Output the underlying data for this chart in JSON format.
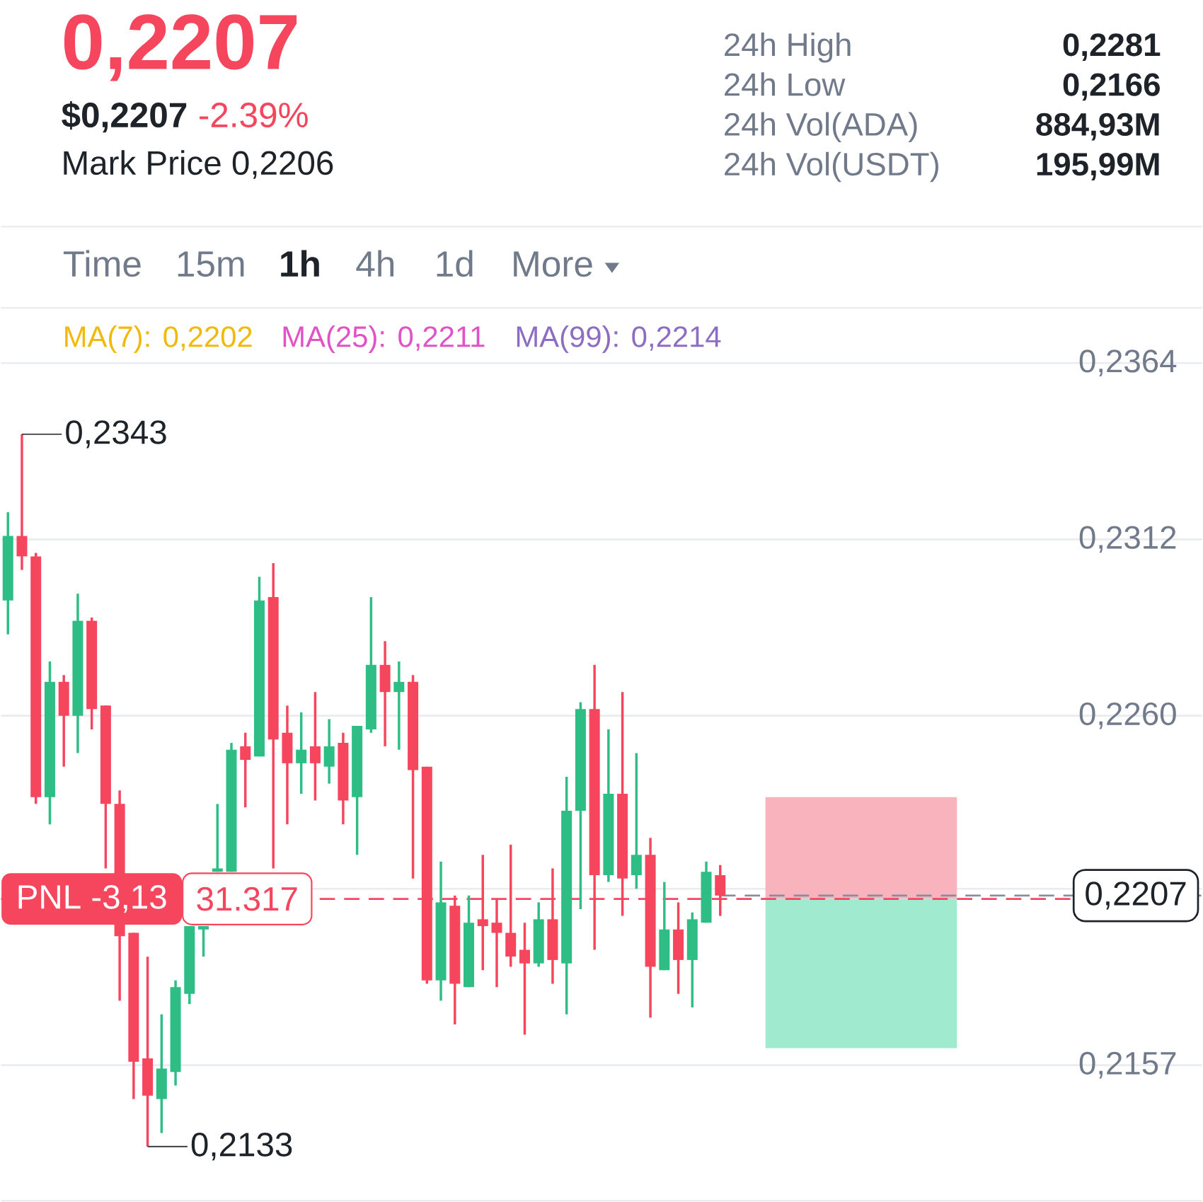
{
  "chart_data": {
    "type": "candlestick",
    "title": "0,2207",
    "annotations": [
      "$0,2207",
      "-2.39%",
      "Mark Price 0,2206",
      "24h High",
      "0,2281",
      "24h Low",
      "0,2166",
      "24h Vol(ADA)",
      "884,93M",
      "24h Vol(USDT)",
      "195,99M",
      "Time",
      "15m",
      "1h",
      "4h",
      "1d",
      "More",
      "MA(7): 0,2202",
      "MA(25): 0,2211",
      "MA(99): 0,2214",
      "0,2343",
      "0,2133",
      "31.317"
    ],
    "categories": [
      null,
      null,
      null,
      null,
      null,
      null,
      null,
      null,
      null,
      null,
      null,
      null,
      null,
      null,
      null,
      null,
      null,
      null,
      null,
      null,
      null,
      null,
      null,
      null,
      null,
      null,
      null,
      null,
      null,
      null,
      null,
      null,
      null,
      null,
      null,
      null,
      null,
      null,
      null,
      null,
      null,
      null,
      null,
      null,
      null,
      null,
      null,
      null,
      null,
      null,
      null,
      null,
      null,
      null,
      null,
      null,
      null,
      null,
      null,
      null,
      null,
      null,
      null,
      null,
      null,
      null,
      null,
      null,
      null,
      null,
      null,
      null,
      null,
      null,
      null,
      null,
      null,
      null,
      null,
      null,
      null,
      null,
      null,
      null,
      null,
      null
    ],
    "ohlc": [
      [
        0.2294,
        0.232,
        0.2284,
        0.2313
      ],
      [
        0.2313,
        0.2343,
        0.2303,
        0.2307
      ],
      [
        0.2307,
        0.2308,
        0.2234,
        0.2236
      ],
      [
        0.2236,
        0.2276,
        0.2228,
        0.227
      ],
      [
        0.227,
        0.2272,
        0.2245,
        0.226
      ],
      [
        0.226,
        0.2296,
        0.2249,
        0.2288
      ],
      [
        0.2288,
        0.2289,
        0.2256,
        0.2262
      ],
      [
        0.2263,
        0.2263,
        0.2215,
        0.2234
      ],
      [
        0.2234,
        0.2238,
        0.2176,
        0.2195
      ],
      [
        0.2196,
        0.2196,
        0.2147,
        0.2158
      ],
      [
        0.2159,
        0.2189,
        0.2133,
        0.2148
      ],
      [
        0.2147,
        0.2172,
        0.2137,
        0.2156
      ],
      [
        0.2155,
        0.2182,
        0.2151,
        0.218
      ],
      [
        0.2178,
        0.2198,
        0.2175,
        0.2198
      ],
      [
        0.2197,
        0.2198,
        0.2189,
        0.2198
      ],
      [
        0.2214,
        0.2234,
        0.2214,
        0.2215
      ],
      [
        0.2214,
        0.2252,
        0.2214,
        0.225
      ],
      [
        0.2251,
        0.2255,
        0.2233,
        0.2247
      ],
      [
        0.2248,
        0.2301,
        0.2248,
        0.2294
      ],
      [
        0.2295,
        0.2305,
        0.2215,
        0.2253
      ],
      [
        0.2255,
        0.2263,
        0.2228,
        0.2246
      ],
      [
        0.2246,
        0.2261,
        0.2237,
        0.225
      ],
      [
        0.2251,
        0.2267,
        0.2235,
        0.2246
      ],
      [
        0.2245,
        0.2259,
        0.224,
        0.2251
      ],
      [
        0.2252,
        0.2255,
        0.2228,
        0.2235
      ],
      [
        0.2236,
        0.2257,
        0.2219,
        0.2257
      ],
      [
        0.2256,
        0.2295,
        0.2255,
        0.2275
      ],
      [
        0.2275,
        0.2282,
        0.2251,
        0.2267
      ],
      [
        0.2267,
        0.2276,
        0.225,
        0.227
      ],
      [
        0.227,
        0.2272,
        0.2212,
        0.2244
      ],
      [
        0.2245,
        0.2245,
        0.2181,
        0.2182
      ],
      [
        0.2182,
        0.2217,
        0.2176,
        0.2205
      ],
      [
        0.2204,
        0.2207,
        0.2169,
        0.2181
      ],
      [
        0.218,
        0.2207,
        0.218,
        0.2199
      ],
      [
        0.22,
        0.2219,
        0.2185,
        0.2198
      ],
      [
        0.2199,
        0.2206,
        0.218,
        0.2196
      ],
      [
        0.2196,
        0.2222,
        0.2186,
        0.2189
      ],
      [
        0.2191,
        0.2199,
        0.2166,
        0.2187
      ],
      [
        0.2187,
        0.2205,
        0.2186,
        0.22
      ],
      [
        0.22,
        0.2215,
        0.2181,
        0.2188
      ],
      [
        0.2187,
        0.2242,
        0.2172,
        0.2232
      ],
      [
        0.2232,
        0.2264,
        0.2203,
        0.2262
      ],
      [
        0.2262,
        0.2275,
        0.2191,
        0.2213
      ],
      [
        0.2213,
        0.2256,
        0.2211,
        0.2237
      ],
      [
        0.2237,
        0.2267,
        0.2201,
        0.2212
      ],
      [
        0.2213,
        0.2249,
        0.2209,
        0.2219
      ],
      [
        0.2219,
        0.2224,
        0.2171,
        0.2186
      ],
      [
        0.2185,
        0.2211,
        0.2185,
        0.2197
      ],
      [
        0.2197,
        0.2205,
        0.2178,
        0.2188
      ],
      [
        0.2188,
        0.2202,
        0.2174,
        0.22
      ],
      [
        0.2199,
        0.2217,
        0.2199,
        0.2214
      ],
      [
        0.2213,
        0.2216,
        0.2201,
        0.2207
      ],
      null,
      null,
      null,
      null,
      null,
      null,
      null,
      null,
      null,
      null,
      null,
      null,
      null,
      null,
      null,
      null,
      null,
      null,
      null,
      null,
      null,
      null,
      null,
      null,
      null,
      null,
      null,
      null,
      null,
      null,
      null,
      null,
      null,
      null
    ],
    "colors": [
      "#2ebd85",
      "#f6465d",
      "#f6465d",
      "#2ebd85",
      "#f6465d",
      "#2ebd85",
      "#f6465d",
      "#f6465d",
      "#f6465d",
      "#f6465d",
      "#f6465d",
      "#2ebd85",
      "#2ebd85",
      "#2ebd85",
      "#2ebd85",
      "#2ebd85",
      "#2ebd85",
      "#f6465d",
      "#2ebd85",
      "#f6465d",
      "#f6465d",
      "#2ebd85",
      "#f6465d",
      "#2ebd85",
      "#f6465d",
      "#2ebd85",
      "#2ebd85",
      "#f6465d",
      "#2ebd85",
      "#f6465d",
      "#f6465d",
      "#2ebd85",
      "#f6465d",
      "#2ebd85",
      "#f6465d",
      "#f6465d",
      "#f6465d",
      "#f6465d",
      "#2ebd85",
      "#f6465d",
      "#2ebd85",
      "#2ebd85",
      "#f6465d",
      "#2ebd85",
      "#f6465d",
      "#2ebd85",
      "#f6465d",
      "#2ebd85",
      "#f6465d",
      "#2ebd85",
      "#2ebd85",
      "#f6465d",
      null,
      null,
      null,
      null,
      null,
      null,
      null,
      null,
      null,
      null,
      null,
      null,
      null,
      null,
      null,
      null,
      null,
      null,
      null,
      null,
      null,
      null,
      null,
      null,
      null,
      null,
      null,
      null,
      null,
      null,
      null,
      null,
      null,
      null
    ],
    "ylim": [
      0.2117,
      0.2364
    ],
    "yticks": [
      {
        "value": 0.2157,
        "label": "0,2157"
      },
      {
        "value": 0.2209,
        "label": null
      },
      {
        "value": 0.226,
        "label": "0,2260"
      },
      {
        "value": 0.2312,
        "label": "0,2312"
      },
      {
        "value": 0.2364,
        "label": "0,2364"
      }
    ],
    "grid": "y",
    "tick_labels": "y",
    "ref_lines": [
      {
        "axis": "y",
        "value": 0.2206,
        "label": "PNL -3,13",
        "color": "#f6465d",
        "line_style": "dashed"
      },
      {
        "axis": "y",
        "value": 0.2207,
        "label": "0,2207",
        "color": "#848e9c",
        "line_style": "dashed"
      }
    ],
    "bands": [
      {
        "axis": "y",
        "from": 0.2206,
        "to": 0.2236,
        "color": "#f9b3bd"
      },
      {
        "axis": "y",
        "from": 0.2162,
        "to": 0.2206,
        "color": "#a0ebcf"
      }
    ]
  }
}
